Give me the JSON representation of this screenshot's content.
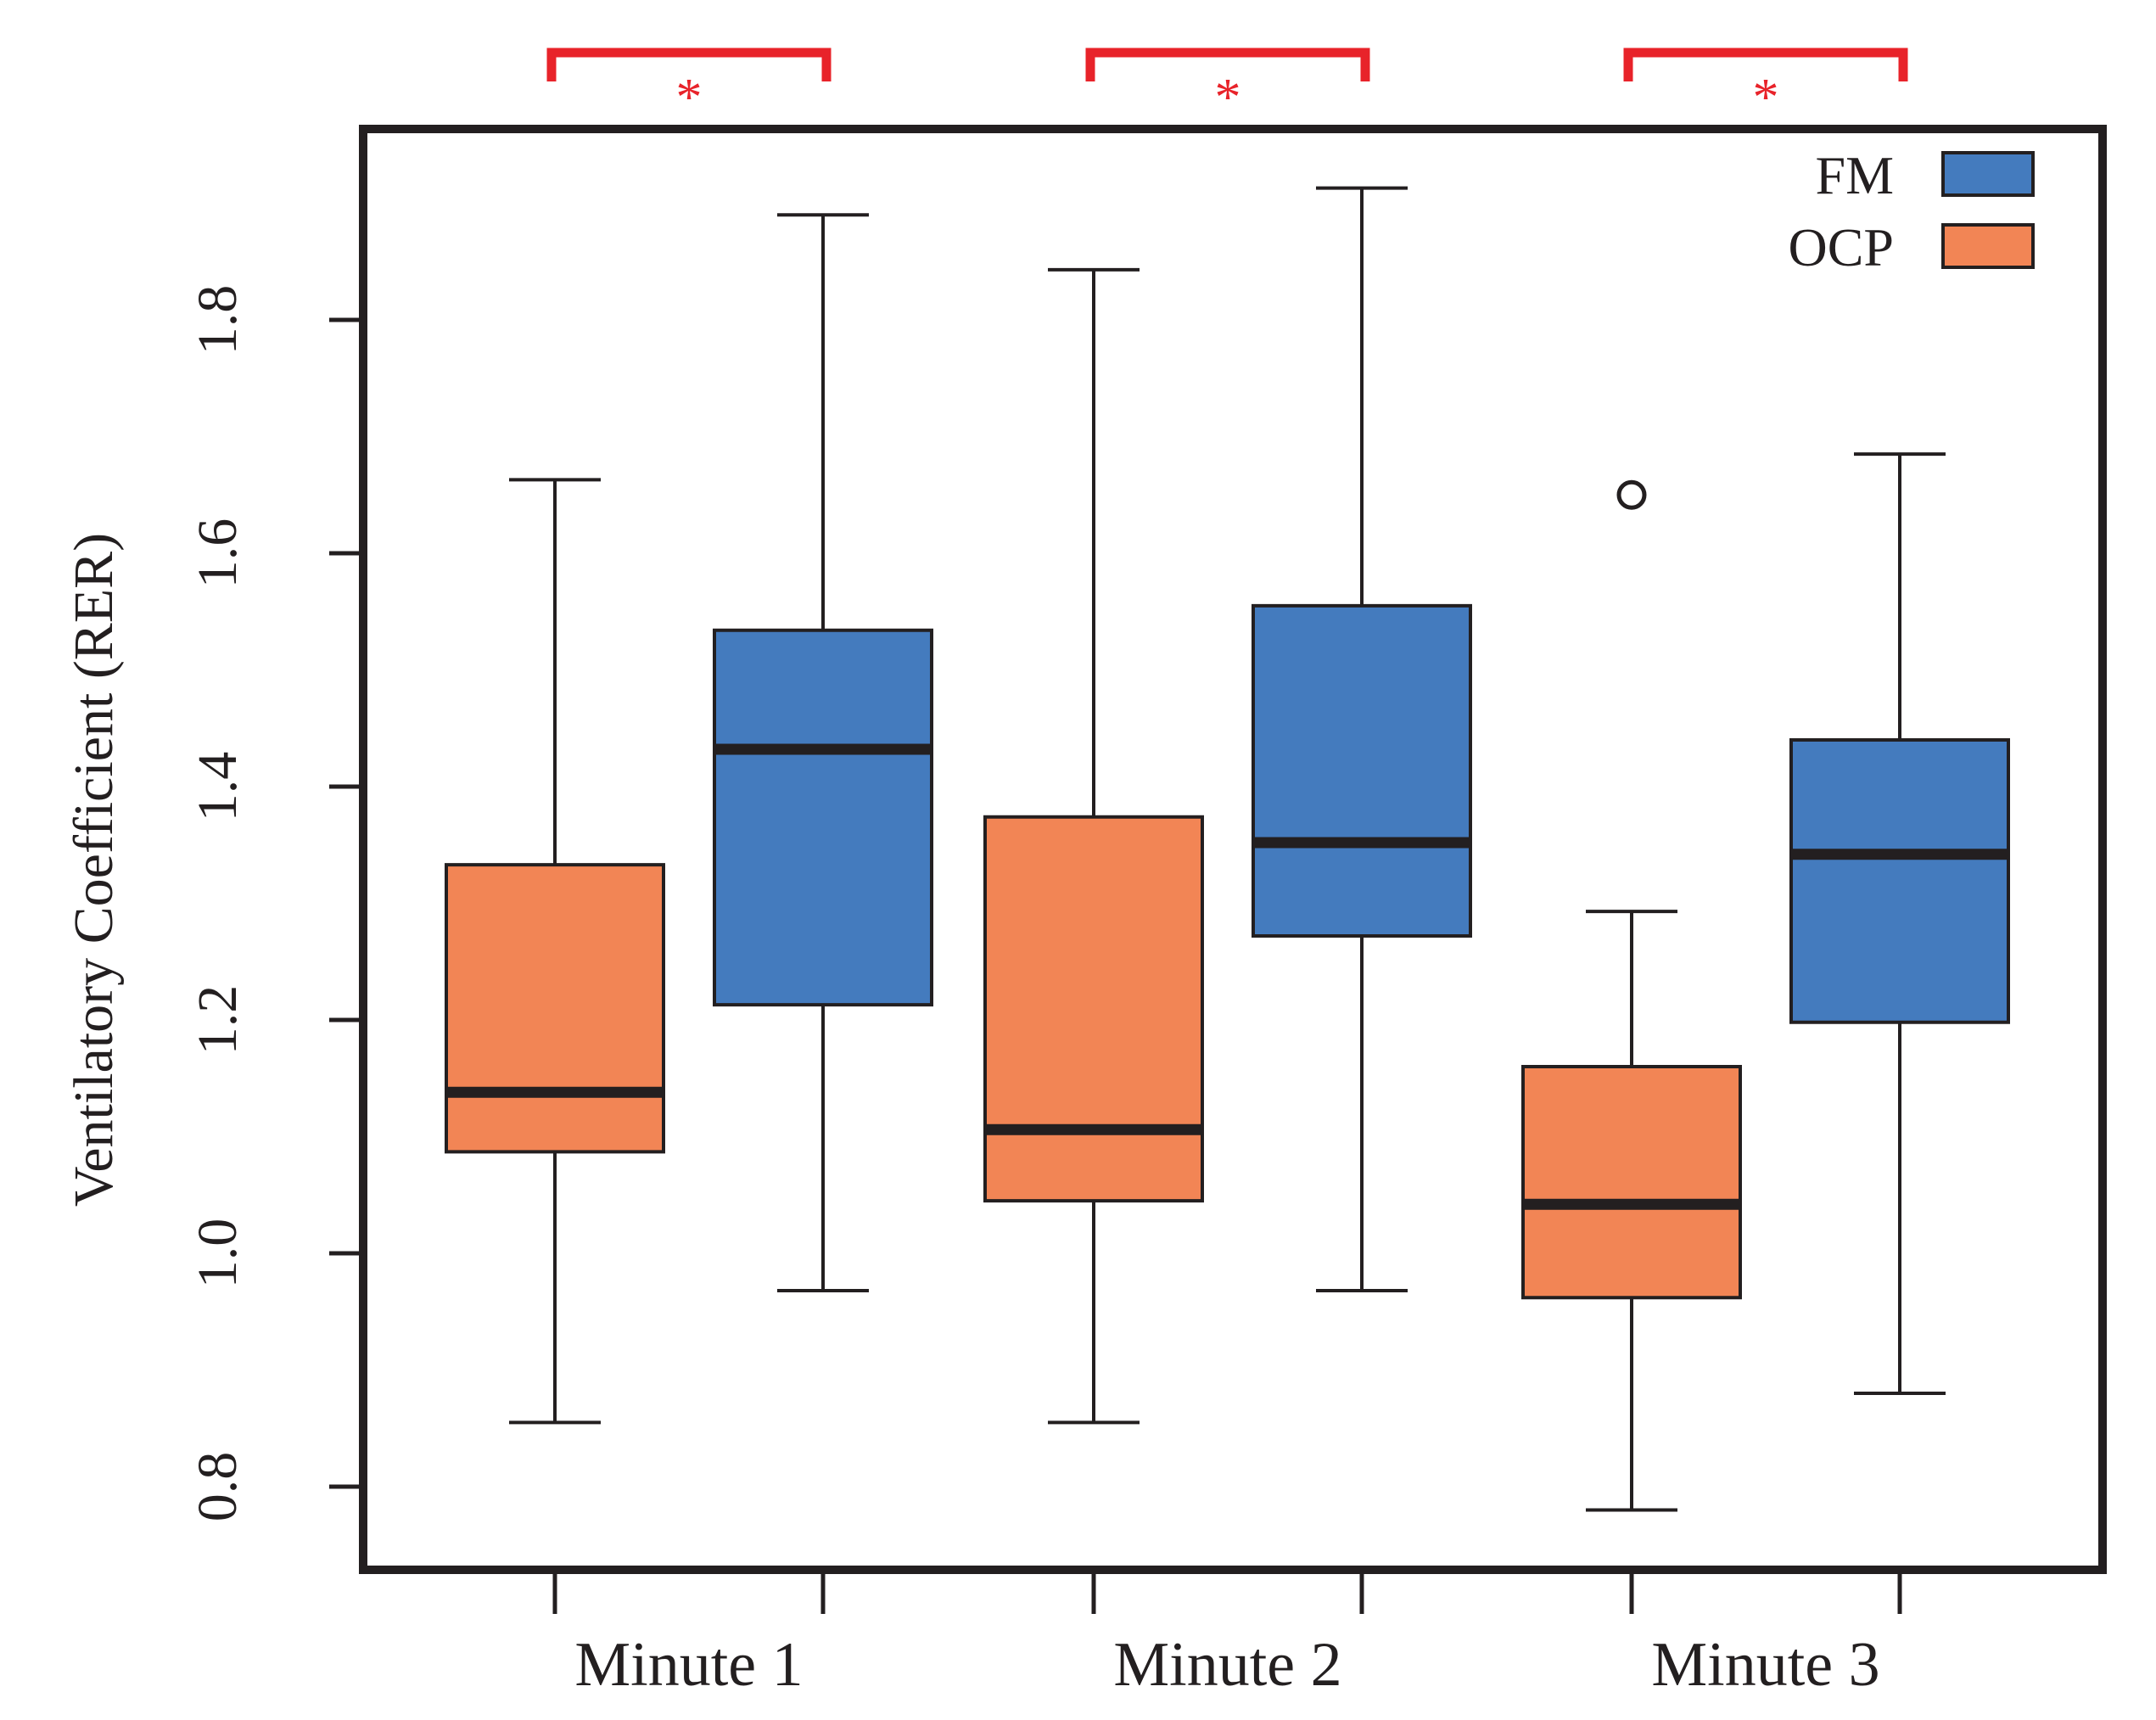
{
  "chart_data": {
    "type": "boxplot",
    "title": "",
    "xlabel": "",
    "ylabel": "Ventilatory Coefficient (RER)",
    "ylim": [
      0.73,
      1.97
    ],
    "yticks": [
      "0.8",
      "1.0",
      "1.2",
      "1.4",
      "1.6",
      "1.8"
    ],
    "categories": [
      "Minute 1",
      "Minute 2",
      "Minute 3"
    ],
    "series": [
      {
        "name": "OCP",
        "color": "#F28555",
        "boxes": [
          {
            "category": "Minute 1",
            "whisker_low": 0.855,
            "q1": 1.087,
            "median": 1.138,
            "q3": 1.333,
            "whisker_high": 1.663,
            "outliers": []
          },
          {
            "category": "Minute 2",
            "whisker_low": 0.855,
            "q1": 1.045,
            "median": 1.106,
            "q3": 1.374,
            "whisker_high": 1.843,
            "outliers": []
          },
          {
            "category": "Minute 3",
            "whisker_low": 0.78,
            "q1": 0.962,
            "median": 1.042,
            "q3": 1.16,
            "whisker_high": 1.293,
            "outliers": [
              1.65
            ]
          }
        ]
      },
      {
        "name": "FM",
        "color": "#447BBE",
        "boxes": [
          {
            "category": "Minute 1",
            "whisker_low": 0.968,
            "q1": 1.213,
            "median": 1.432,
            "q3": 1.534,
            "whisker_high": 1.89,
            "outliers": []
          },
          {
            "category": "Minute 2",
            "whisker_low": 0.968,
            "q1": 1.272,
            "median": 1.352,
            "q3": 1.555,
            "whisker_high": 1.913,
            "outliers": []
          },
          {
            "category": "Minute 3",
            "whisker_low": 0.88,
            "q1": 1.198,
            "median": 1.342,
            "q3": 1.44,
            "whisker_high": 1.685,
            "outliers": []
          }
        ]
      }
    ],
    "legend": {
      "position": "top-right",
      "entries": [
        {
          "label": "FM",
          "color": "#447BBE"
        },
        {
          "label": "OCP",
          "color": "#F28555"
        }
      ]
    },
    "significance": {
      "symbol": "*",
      "color": "#E8232A",
      "pairs": [
        "Minute 1",
        "Minute 2",
        "Minute 3"
      ]
    }
  }
}
